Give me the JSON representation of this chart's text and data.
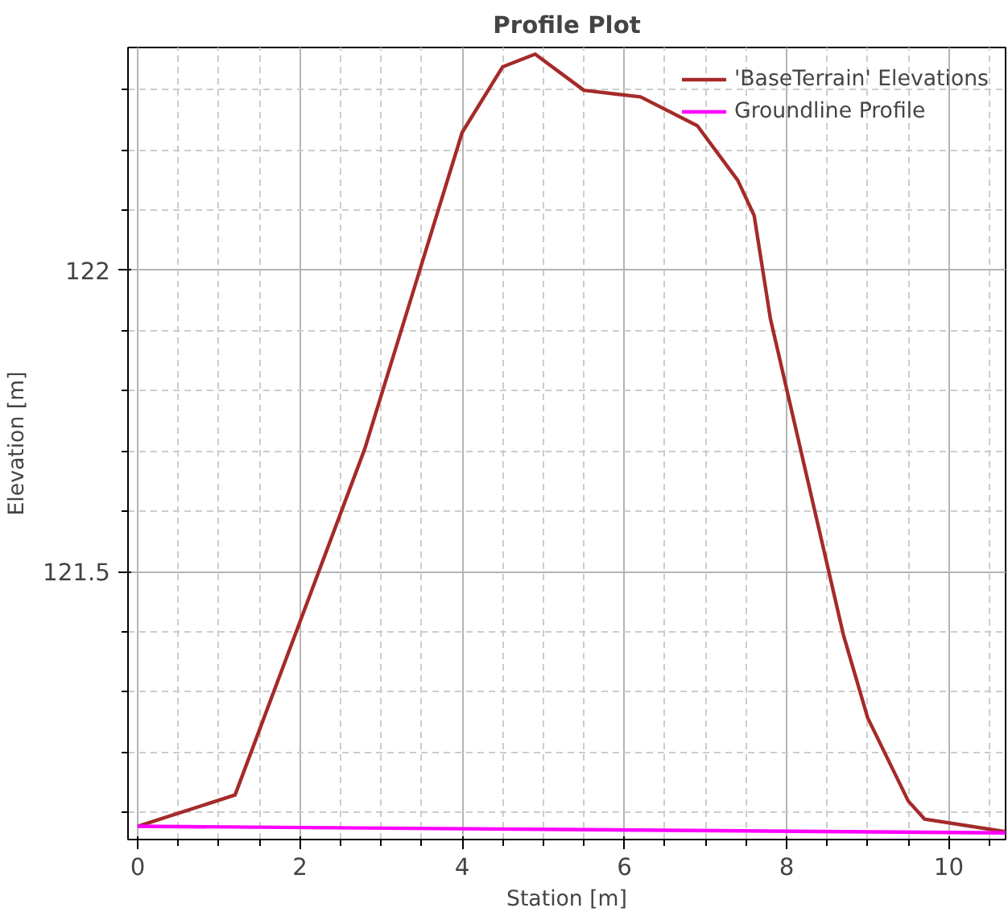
{
  "chart_data": {
    "type": "line",
    "title": "Profile Plot",
    "xlabel": "Station [m]",
    "ylabel": "Elevation [m]",
    "series": [
      {
        "name": "'BaseTerrain' Elevations",
        "color": "#a52a2a",
        "x": [
          0,
          1.2,
          2.8,
          4.0,
          4.5,
          4.9,
          5.5,
          6.2,
          6.9,
          7.4,
          7.6,
          7.8,
          8.7,
          9.0,
          9.5,
          9.7,
          10.7
        ],
        "values": [
          121.077,
          121.129,
          121.704,
          122.229,
          122.338,
          122.359,
          122.299,
          122.288,
          122.24,
          122.149,
          122.091,
          121.92,
          121.395,
          121.257,
          121.119,
          121.089,
          121.068
        ]
      },
      {
        "name": "Groundline Profile",
        "color": "#ff00ff",
        "x": [
          0,
          10.7
        ],
        "values": [
          121.077,
          121.066
        ]
      }
    ],
    "xlim": [
      -0.12,
      10.7
    ],
    "ylim": [
      121.055,
      122.37
    ],
    "xticks": [
      0,
      {
        "value": 0.5,
        "label": null
      },
      {
        "value": 1,
        "label": null
      },
      {
        "value": 1.5,
        "label": null
      },
      2,
      {
        "value": 2.5,
        "label": null
      },
      {
        "value": 3,
        "label": null
      },
      {
        "value": 3.5,
        "label": null
      },
      4,
      {
        "value": 4.5,
        "label": null
      },
      {
        "value": 5,
        "label": null
      },
      {
        "value": 5.5,
        "label": null
      },
      6,
      {
        "value": 6.5,
        "label": null
      },
      {
        "value": 7,
        "label": null
      },
      {
        "value": 7.5,
        "label": null
      },
      8,
      {
        "value": 8.5,
        "label": null
      },
      {
        "value": 9,
        "label": null
      },
      {
        "value": 9.5,
        "label": null
      },
      10,
      {
        "value": 10.5,
        "label": null
      }
    ],
    "yticks": [
      {
        "value": 121.1,
        "label": null
      },
      {
        "value": 121.2,
        "label": null
      },
      {
        "value": 121.3,
        "label": null
      },
      {
        "value": 121.4,
        "label": null
      },
      {
        "value": 121.5,
        "label": "121.5"
      },
      {
        "value": 121.6,
        "label": null
      },
      {
        "value": 121.7,
        "label": null
      },
      {
        "value": 121.8,
        "label": null
      },
      {
        "value": 121.9,
        "label": null
      },
      {
        "value": 122,
        "label": "122"
      },
      {
        "value": 122.1,
        "label": null
      },
      {
        "value": 122.2,
        "label": null
      },
      {
        "value": 122.3,
        "label": null
      }
    ],
    "grid": true,
    "legend": "top right",
    "line_style": "solid",
    "marker": "none"
  }
}
